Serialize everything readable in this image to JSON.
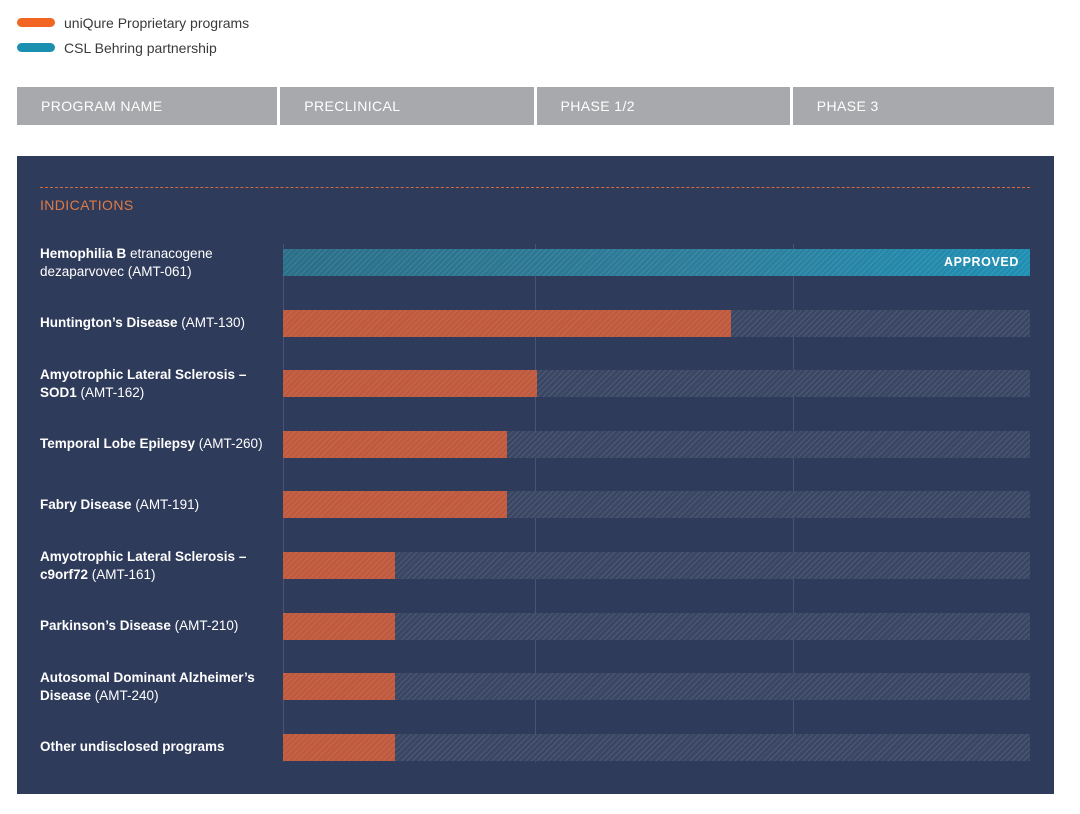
{
  "legend": [
    {
      "label": "uniQure Proprietary programs",
      "color": "#f26522"
    },
    {
      "label": "CSL Behring partnership",
      "color": "#1b8fb0"
    }
  ],
  "header": [
    "PROGRAM NAME",
    "PRECLINICAL",
    "PHASE 1/2",
    "PHASE 3"
  ],
  "section_label": "INDICATIONS",
  "chart_data": {
    "type": "bar",
    "stages": [
      "PRECLINICAL",
      "PHASE 1/2",
      "PHASE 3"
    ],
    "categories": [
      {
        "bold": "Hemophilia B",
        "rest": " etranacogene dezaparvovec (AMT-061)"
      },
      {
        "bold": "Huntington’s Disease",
        "rest": " (AMT-130)"
      },
      {
        "bold": "Amyotrophic Lateral Sclerosis – SOD1",
        "rest": " (AMT-162)"
      },
      {
        "bold": "Temporal Lobe Epilepsy",
        "rest": " (AMT-260)"
      },
      {
        "bold": "Fabry Disease",
        "rest": " (AMT-191)"
      },
      {
        "bold": "Amyotrophic Lateral Sclerosis – c9orf72",
        "rest": " (AMT-161)"
      },
      {
        "bold": "Parkinson’s Disease",
        "rest": " (AMT-210)"
      },
      {
        "bold": "Autosomal Dominant Alzheimer’s Disease",
        "rest": " (AMT-240)"
      },
      {
        "bold": "Other undisclosed programs",
        "rest": ""
      }
    ],
    "progress": [
      1.0,
      0.6,
      0.34,
      0.3,
      0.3,
      0.15,
      0.15,
      0.15,
      0.15
    ],
    "program_type": [
      "partnership",
      "proprietary",
      "proprietary",
      "proprietary",
      "proprietary",
      "proprietary",
      "proprietary",
      "proprietary",
      "proprietary"
    ],
    "status_labels": [
      "APPROVED",
      "",
      "",
      "",
      "",
      "",
      "",
      "",
      ""
    ]
  }
}
